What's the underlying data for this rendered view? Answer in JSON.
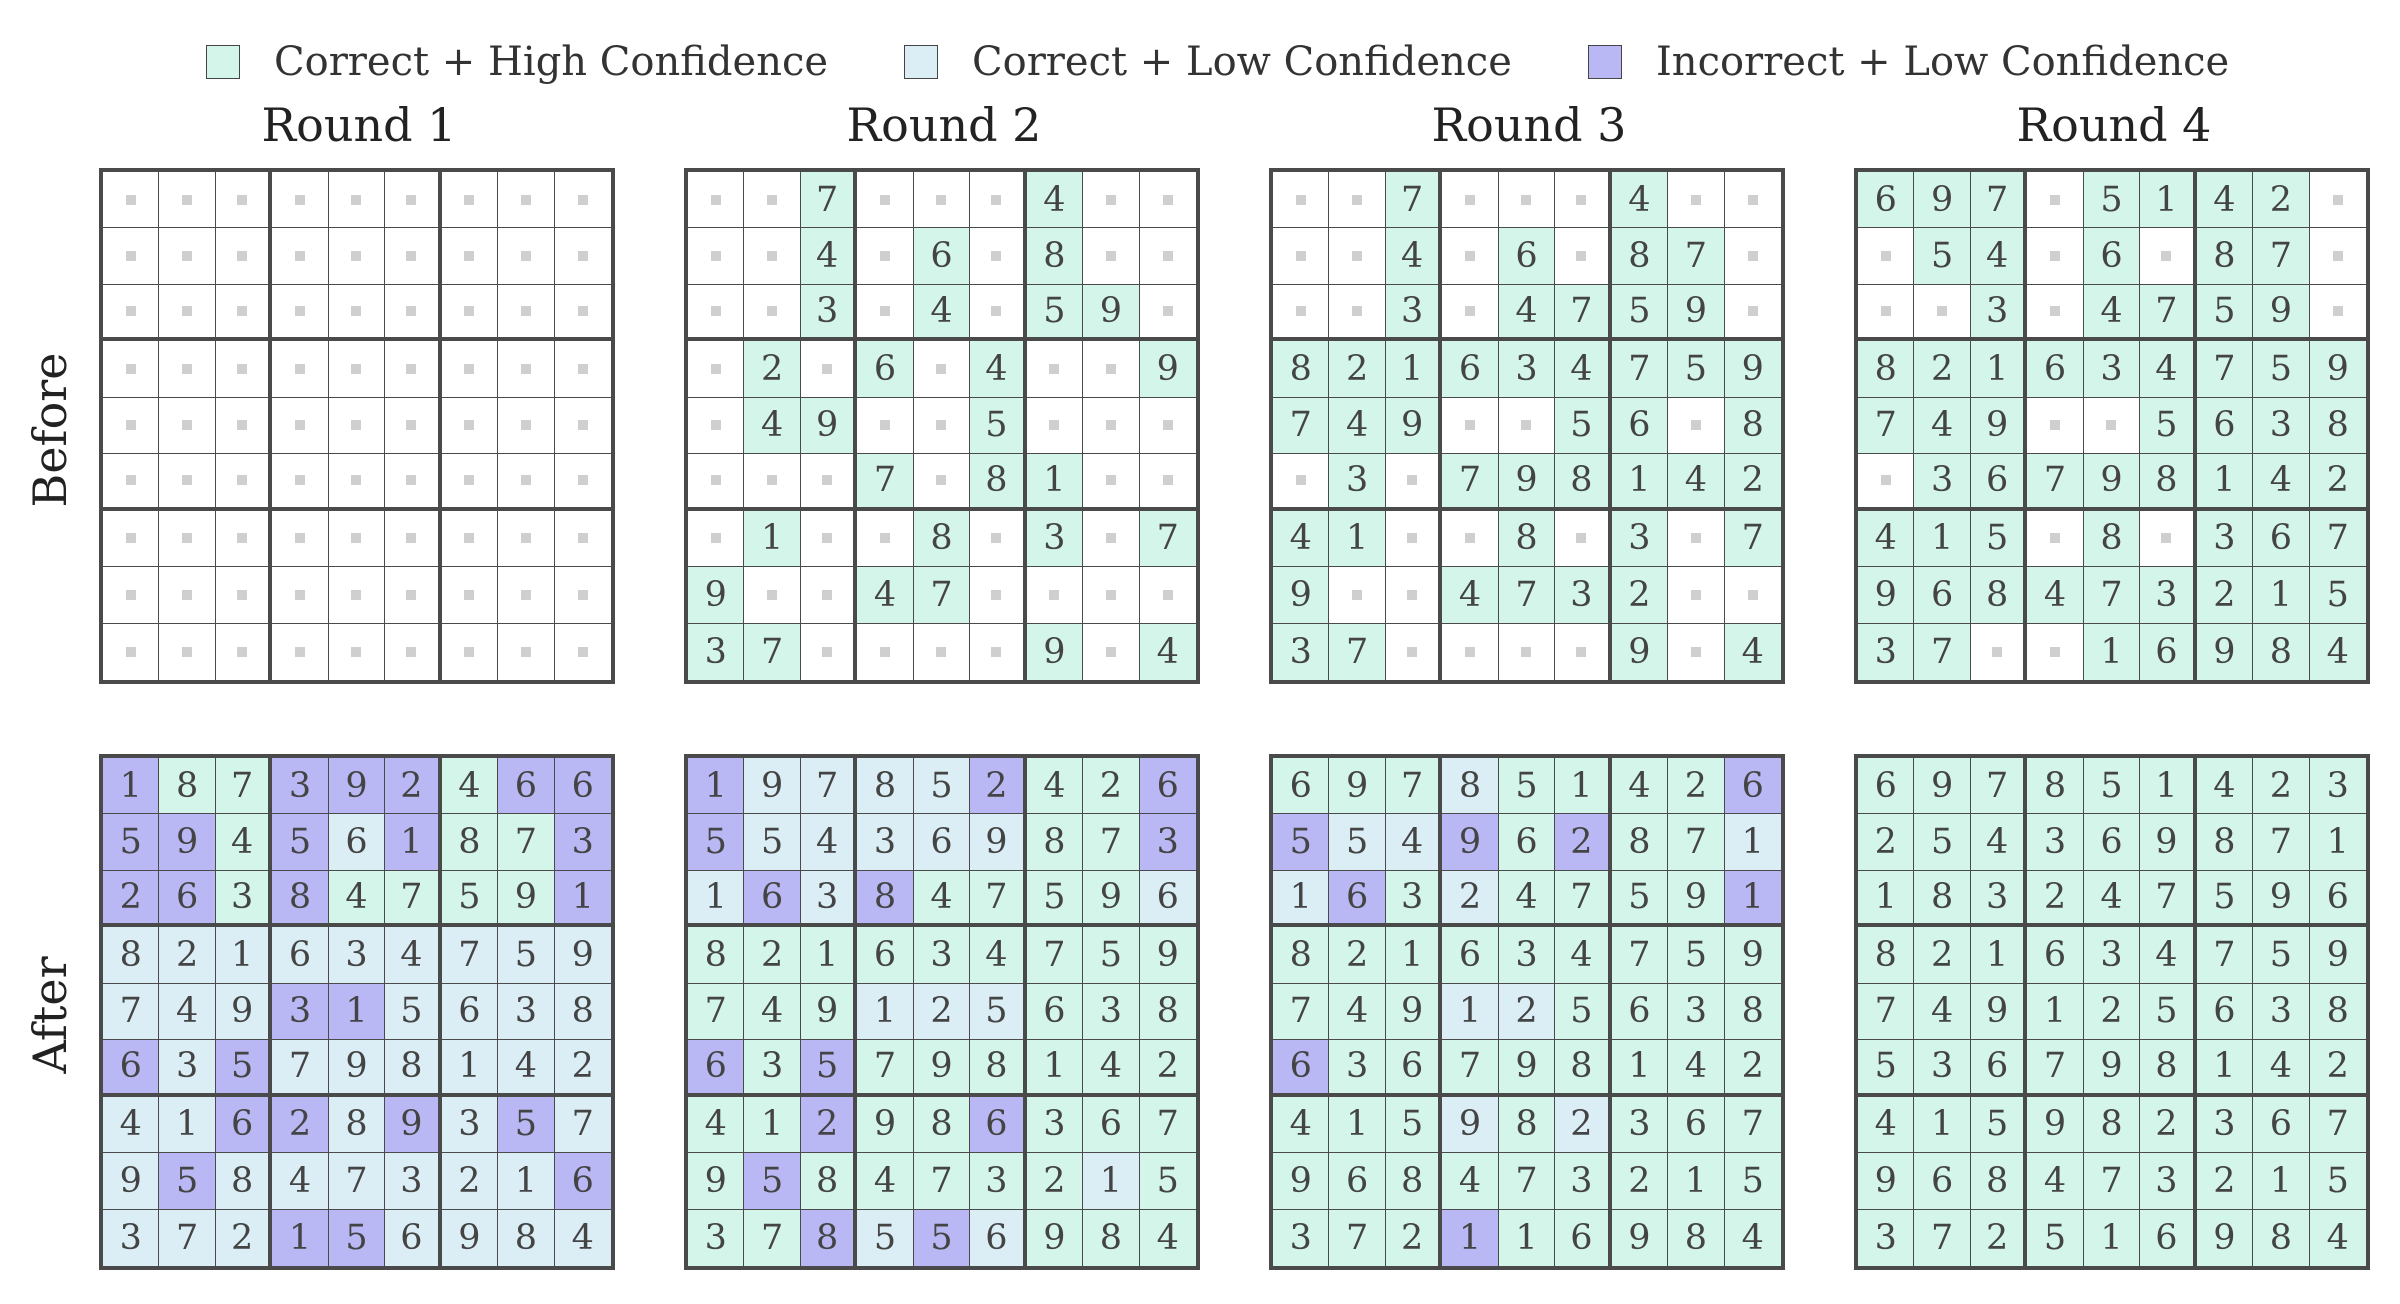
{
  "colors": {
    "correct_high": "#d4f5e9",
    "correct_low": "#dbeef6",
    "incorrect_low": "#b9b8f5",
    "empty": "#ffffff",
    "border": "#4a4a4a"
  },
  "legend": [
    {
      "label": "Correct + High Confidence",
      "key": "H"
    },
    {
      "label": "Correct + Low Confidence",
      "key": "L"
    },
    {
      "label": "Incorrect + Low Confidence",
      "key": "I"
    }
  ],
  "rounds": [
    "Round 1",
    "Round 2",
    "Round 3",
    "Round 4"
  ],
  "row_labels": {
    "before": "Before",
    "after": "After"
  },
  "cell_codes": {
    "H": "correct_high",
    "L": "correct_low",
    "I": "incorrect_low",
    ".": "empty"
  },
  "before": [
    {
      "values": [
        ".........",
        ".........",
        ".........",
        ".........",
        ".........",
        ".........",
        ".........",
        ".........",
        "........."
      ],
      "status": [
        ".........",
        ".........",
        ".........",
        ".........",
        ".........",
        ".........",
        ".........",
        ".........",
        "........."
      ]
    },
    {
      "values": [
        "..7...4..",
        "..4.6.8..",
        "..3.4.59.",
        ".2.6.4..9",
        ".49..5...",
        "...7.81..",
        ".1..8.3.7",
        "9..47....",
        "37....9.4"
      ],
      "status": [
        "..H...H..",
        "..H.H.H..",
        "..H.H.HH.",
        ".H.H.H..H",
        ".HH..H...",
        "...H.HH..",
        ".H..H.H.H",
        "H..HH....",
        "HH....H.H"
      ]
    },
    {
      "values": [
        "..7...4..",
        "..4.6.87.",
        "..3.4759.",
        "821634759",
        "749..56.8",
        ".3.798142",
        "41..8.3.7",
        "9..4732..",
        "37....9.4"
      ],
      "status": [
        "..H...H..",
        "..H.H.HH.",
        "..H.HHHH.",
        "HHHHHHHHH",
        "HHH..HH.H",
        ".H.HHHHHH",
        "HH..H.H.H",
        "H..HHHH..",
        "HH....H.H"
      ]
    },
    {
      "values": [
        "697.5142.",
        ".54.6.87.",
        "..3.4759.",
        "821634759",
        "749..5638",
        ".36798142",
        "415.8.367",
        "968473215",
        "37..16984"
      ],
      "status": [
        "HHH.HHHH.",
        ".HH.H.HH.",
        "..H.HHHH.",
        "HHHHHHHHH",
        "HHH..HHHH",
        ".HHHHHHHH",
        "HHH.H.HHH",
        "HHHHHHHHH",
        "HH..HHHHH"
      ]
    }
  ],
  "after": [
    {
      "values": [
        "187392466",
        "594561873",
        "263847591",
        "821634759",
        "749315638",
        "635798142",
        "416289357",
        "958473216",
        "372156984"
      ],
      "status": [
        "IHHIIIHII",
        "IIHILIHHI",
        "IIHIHHHHI",
        "LLLLLLLLL",
        "LLLIILLLL",
        "ILILLLLLL",
        "LLIILILIL",
        "LILLLLLLI",
        "LLLIILLLL"
      ]
    },
    {
      "values": [
        "197852426",
        "554369873",
        "163847596",
        "821634759",
        "749125638",
        "635798142",
        "412986367",
        "958473215",
        "378556984"
      ],
      "status": [
        "ILLLLIHHI",
        "ILLLLLHHI",
        "LILIHHHHL",
        "HHHHHHHHH",
        "HHHLLLHHH",
        "IHIHHHHHH",
        "HHIHHIHHH",
        "HIHHHHHLH",
        "HHILILHHH"
      ]
    },
    {
      "values": [
        "697851426",
        "554962871",
        "163247591",
        "821634759",
        "749125638",
        "636798142",
        "415982367",
        "968473215",
        "372116984"
      ],
      "status": [
        "HHHLHHHHI",
        "ILLIHIHHL",
        "LIHLHHHHI",
        "HHHHHHHHH",
        "HHHLLHHHH",
        "IHHHHHHHH",
        "HHHLHLHHH",
        "HHHHHHHHH",
        "HHHIHHHHH"
      ]
    },
    {
      "values": [
        "697851423",
        "254369871",
        "183247596",
        "821634759",
        "749125638",
        "536798142",
        "415982367",
        "968473215",
        "372516984"
      ],
      "status": [
        "HHHHHHHHH",
        "HHHHHHHHH",
        "HHHHHHHHH",
        "HHHHHHHHH",
        "HHHHHHHHH",
        "HHHHHHHHH",
        "HHHHHHHHH",
        "HHHHHHHHH",
        "HHHHHHHHH"
      ]
    }
  ]
}
